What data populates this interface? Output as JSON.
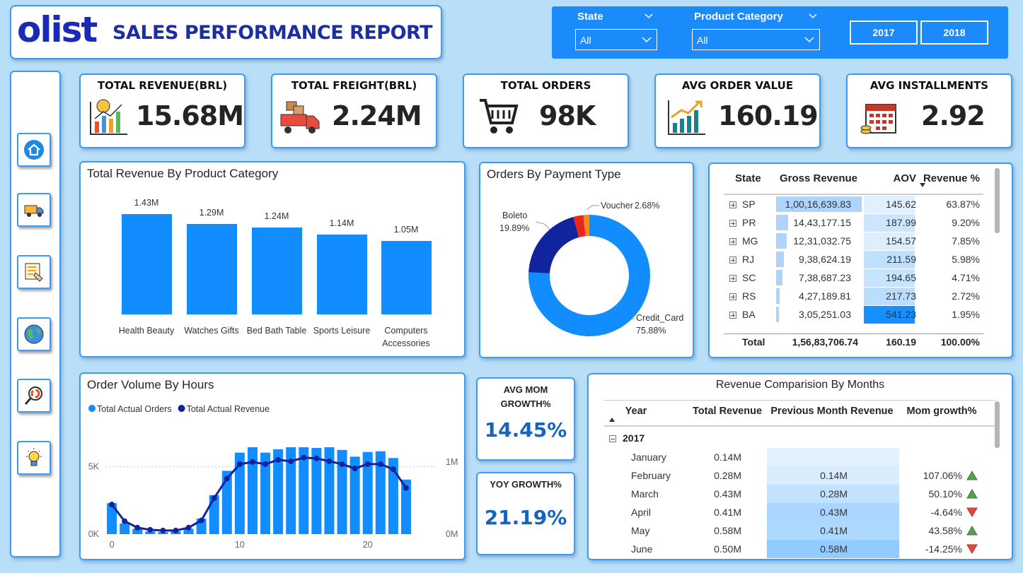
{
  "header": {
    "logo": "olist",
    "title": "SALES PERFORMANCE REPORT"
  },
  "filters": {
    "state": {
      "label": "State",
      "value": "All"
    },
    "category": {
      "label": "Product Category",
      "value": "All"
    },
    "years": [
      "2017",
      "2018"
    ]
  },
  "kpis": [
    {
      "label": "TOTAL REVENUE(BRL)",
      "value": "15.68M"
    },
    {
      "label": "TOTAL FREIGHT(BRL)",
      "value": "2.24M"
    },
    {
      "label": "TOTAL ORDERS",
      "value": "98K"
    },
    {
      "label": "AVG ORDER VALUE",
      "value": "160.19"
    },
    {
      "label": "AVG INSTALLMENTS",
      "value": "2.92"
    }
  ],
  "chart_data": [
    {
      "type": "bar",
      "title": "Total Revenue By Product Category",
      "categories": [
        "Health Beauty",
        "Watches Gifts",
        "Bed Bath Table",
        "Sports Leisure",
        "Computers Accessories"
      ],
      "values": [
        1.43,
        1.29,
        1.24,
        1.14,
        1.05
      ],
      "value_labels": [
        "1.43M",
        "1.29M",
        "1.24M",
        "1.14M",
        "1.05M"
      ],
      "color": "#118dff"
    },
    {
      "type": "pie",
      "title": "Orders By Payment Type",
      "categories": [
        "Credit_Card",
        "Boleto",
        "Voucher",
        null
      ],
      "values": [
        75.88,
        19.89,
        2.68,
        1.55
      ],
      "value_labels": [
        "75.88%",
        "19.89%",
        "2.68%",
        null
      ],
      "colors": [
        "#118dff",
        "#12239e",
        "#e8251f",
        "#f28a1c"
      ]
    },
    {
      "type": "combo",
      "title": "Order Volume By Hours",
      "x": [
        0,
        1,
        2,
        3,
        4,
        5,
        6,
        7,
        8,
        9,
        10,
        11,
        12,
        13,
        14,
        15,
        16,
        17,
        18,
        19,
        20,
        21,
        22,
        23
      ],
      "xlim": [
        -0.5,
        23.5
      ],
      "xticks": [
        0,
        10,
        20
      ],
      "ylim": [
        0,
        7500
      ],
      "yticks": [
        {
          "value": 0,
          "label": "0K"
        },
        {
          "value": 5000,
          "label": "5K"
        }
      ],
      "y2lim": [
        0,
        1400000
      ],
      "y2ticks": [
        {
          "value": 0,
          "label": "0M"
        },
        {
          "value": 1000000,
          "label": "1M"
        }
      ],
      "grid": true,
      "legend": "top-left",
      "series": [
        {
          "name": "Total Actual Orders",
          "color": "#118dff",
          "type": "bar",
          "values": [
            2300,
            800,
            400,
            200,
            150,
            200,
            400,
            1150,
            2900,
            4700,
            6050,
            6450,
            6050,
            6300,
            6450,
            6450,
            6400,
            6450,
            6250,
            5750,
            6100,
            6150,
            5650,
            4050
          ]
        },
        {
          "name": "Total Actual Revenue",
          "color": "#12239e",
          "type": "line",
          "axis": "y2",
          "values": [
            410000,
            180000,
            90000,
            60000,
            50000,
            50000,
            90000,
            190000,
            500000,
            770000,
            970000,
            1000000,
            970000,
            1030000,
            1010000,
            1060000,
            1050000,
            1010000,
            970000,
            910000,
            970000,
            970000,
            900000,
            640000
          ]
        }
      ]
    }
  ],
  "state_table": {
    "columns": [
      "State",
      "Gross Revenue",
      "AOV",
      "Revenue %"
    ],
    "rows": [
      [
        "SP",
        "1,00,16,639.83",
        "145.62",
        "63.87%"
      ],
      [
        "PR",
        "14,43,177.15",
        "187.99",
        "9.20%"
      ],
      [
        "MG",
        "12,31,032.75",
        "154.57",
        "7.85%"
      ],
      [
        "RJ",
        "9,38,624.19",
        "211.59",
        "5.98%"
      ],
      [
        "SC",
        "7,38,687.23",
        "194.65",
        "4.71%"
      ],
      [
        "RS",
        "4,27,189.81",
        "217.73",
        "2.72%"
      ],
      [
        "BA",
        "3,05,251.03",
        "541.23",
        "1.95%"
      ]
    ],
    "total": [
      "Total",
      "1,56,83,706.74",
      "160.19",
      "100.00%"
    ]
  },
  "growth_cards": [
    {
      "label": "AVG MOM GROWTH%",
      "value": "14.45%"
    },
    {
      "label": "YOY GROWTH%",
      "value": "21.19%"
    }
  ],
  "month_table": {
    "title": "Revenue Comparision By Months",
    "columns": [
      "Year",
      "Total Revenue",
      "Previous Month Revenue",
      "Mom growth%"
    ],
    "group": "2017",
    "rows": [
      [
        "January",
        "0.14M",
        null,
        null
      ],
      [
        "February",
        "0.28M",
        "0.14M",
        "107.06%"
      ],
      [
        "March",
        "0.43M",
        "0.28M",
        "50.10%"
      ],
      [
        "April",
        "0.41M",
        "0.43M",
        "-4.64%"
      ],
      [
        "May",
        "0.58M",
        "0.41M",
        "43.58%"
      ],
      [
        "June",
        "0.50M",
        "0.58M",
        "-14.25%"
      ]
    ]
  }
}
